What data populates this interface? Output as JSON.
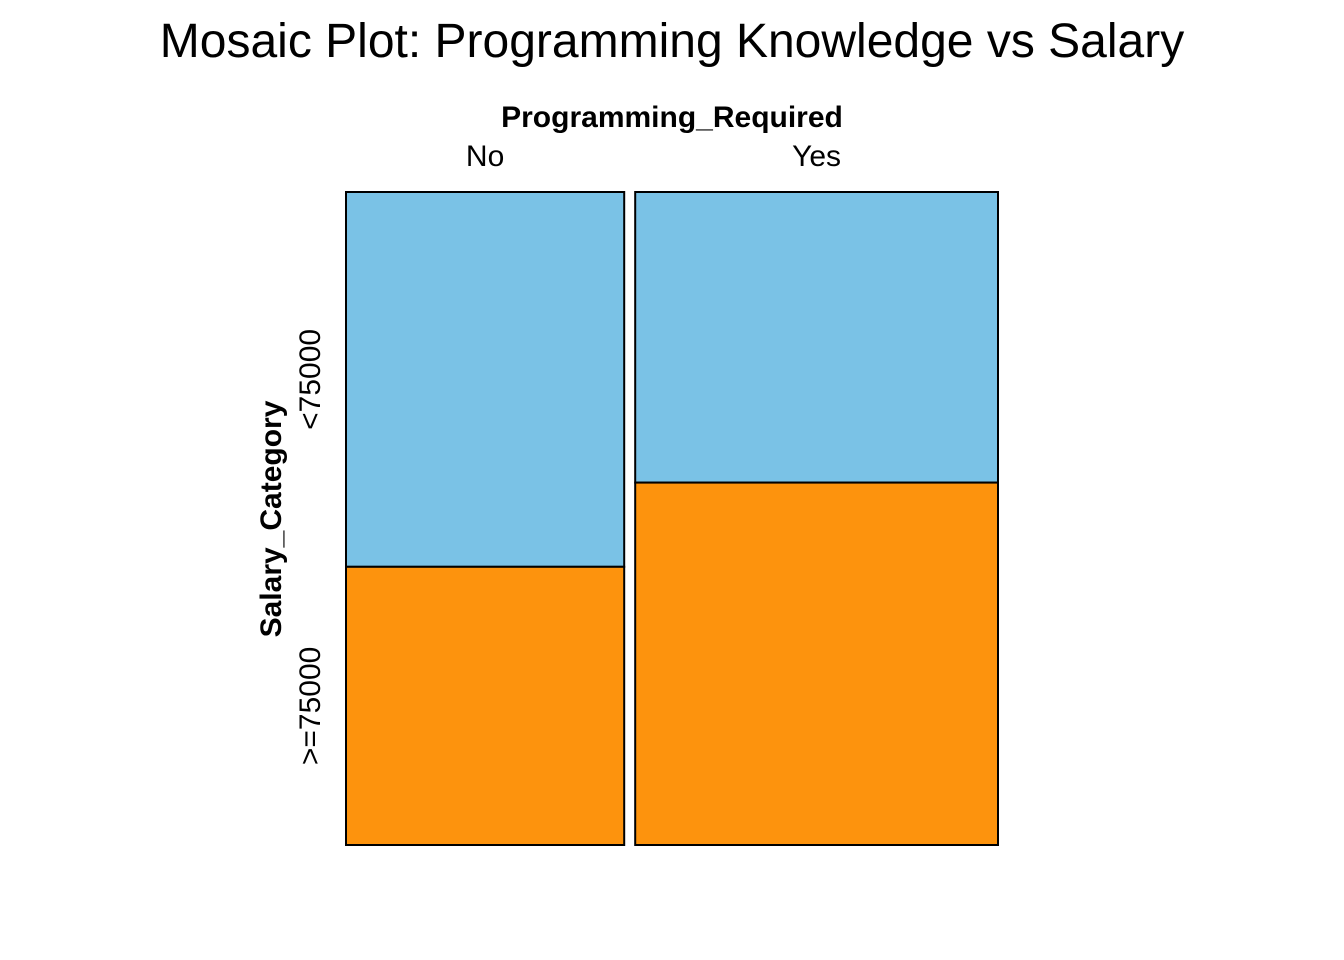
{
  "chart_data": {
    "type": "mosaic",
    "title": "Mosaic Plot: Programming Knowledge vs Salary",
    "xlabel": "Programming_Required",
    "ylabel": "Salary_Category",
    "x_categories": [
      "No",
      "Yes"
    ],
    "y_categories": [
      "<75000",
      ">=75000"
    ],
    "column_shares": [
      0.434,
      0.566
    ],
    "cells": [
      {
        "x": "No",
        "y": "<75000",
        "proportion_within_column": 0.574,
        "color": "#7AC2E6"
      },
      {
        "x": "No",
        "y": ">=75000",
        "proportion_within_column": 0.426,
        "color": "#FD930D"
      },
      {
        "x": "Yes",
        "y": "<75000",
        "proportion_within_column": 0.445,
        "color": "#7AC2E6"
      },
      {
        "x": "Yes",
        "y": ">=75000",
        "proportion_within_column": 0.555,
        "color": "#FD930D"
      }
    ],
    "legend": "none",
    "grid": false
  }
}
